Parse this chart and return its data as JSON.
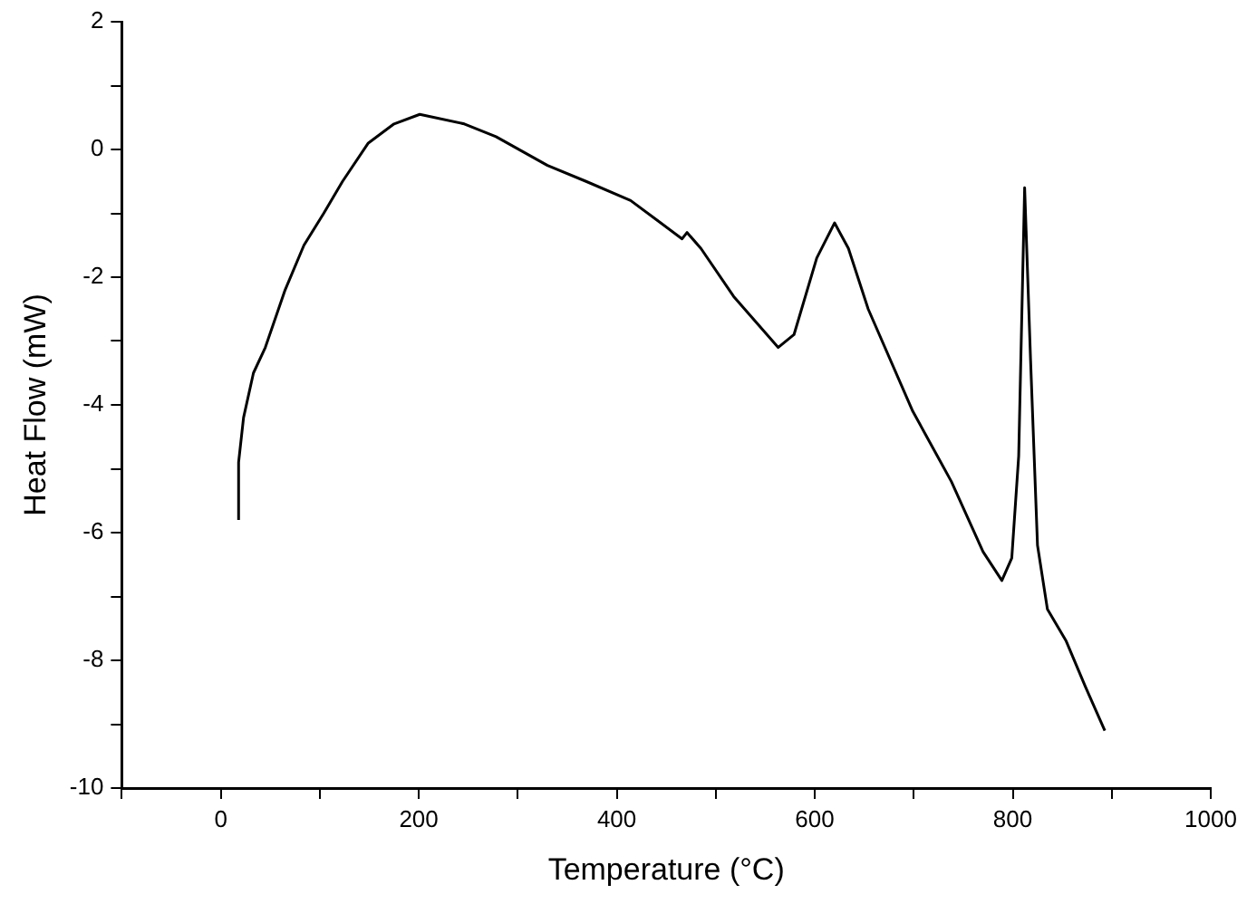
{
  "chart_data": {
    "type": "line",
    "xlabel": "Temperature (°C)",
    "ylabel": "Heat Flow (mW)",
    "xlim": [
      -100,
      1000
    ],
    "ylim": [
      -10,
      2
    ],
    "xticks": [
      {
        "value": -100,
        "label": null
      },
      0,
      {
        "value": 100,
        "label": null
      },
      200,
      {
        "value": 300,
        "label": null
      },
      400,
      {
        "value": 500,
        "label": null
      },
      600,
      {
        "value": 700,
        "label": null
      },
      800,
      {
        "value": 900,
        "label": null
      },
      1000
    ],
    "yticks": [
      -10,
      {
        "value": -9,
        "label": null
      },
      -8,
      {
        "value": -7,
        "label": null
      },
      -6,
      {
        "value": -5,
        "label": null
      },
      -4,
      {
        "value": -3,
        "label": null
      },
      -2,
      {
        "value": -1,
        "label": null
      },
      0,
      {
        "value": 1,
        "label": null
      },
      2
    ],
    "grid": false,
    "legend": false,
    "marker": "none",
    "line_style": "solid",
    "series": [
      {
        "color": "#000000",
        "x": [
          18,
          18,
          23,
          33,
          45,
          65,
          84,
          104,
          123,
          149,
          175,
          201,
          246,
          278,
          330,
          369,
          414,
          440,
          466,
          471,
          485,
          518,
          563,
          579,
          602,
          620,
          634,
          654,
          699,
          738,
          770,
          789,
          799,
          806,
          812,
          818,
          825,
          835,
          854,
          873,
          893
        ],
        "values": [
          -5.8,
          -4.9,
          -4.2,
          -3.5,
          -3.1,
          -2.2,
          -1.5,
          -1.0,
          -0.5,
          0.1,
          0.4,
          0.55,
          0.4,
          0.2,
          -0.25,
          -0.5,
          -0.8,
          -1.1,
          -1.4,
          -1.3,
          -1.55,
          -2.3,
          -3.1,
          -2.9,
          -1.7,
          -1.15,
          -1.55,
          -2.5,
          -4.1,
          -5.2,
          -6.3,
          -6.75,
          -6.4,
          -4.8,
          -0.6,
          -3.3,
          -6.2,
          -7.2,
          -7.7,
          -8.4,
          -9.1
        ]
      }
    ]
  }
}
